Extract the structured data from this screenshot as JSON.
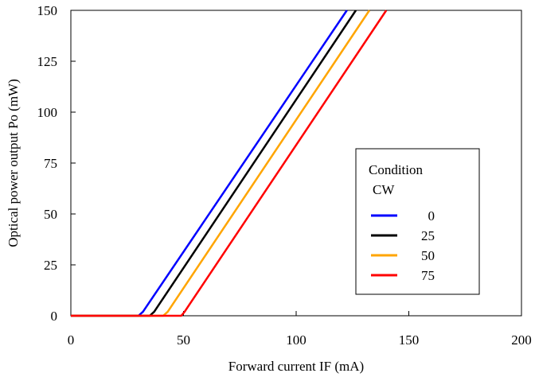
{
  "chart_data": {
    "type": "line",
    "title": "",
    "xlabel": "Forward current IF (mA)",
    "ylabel": "Optical power output Po (mW)",
    "xlim": [
      0,
      200
    ],
    "ylim": [
      0,
      150
    ],
    "xticks": [
      "0",
      "50",
      "100",
      "150",
      "200"
    ],
    "yticks": [
      "0",
      "25",
      "50",
      "75",
      "100",
      "125",
      "150"
    ],
    "grid": false,
    "legend": {
      "title_line1": "Condition",
      "title_line2": "CW",
      "placement": "right"
    },
    "series": [
      {
        "name": "0",
        "color": "#0000ff",
        "x": [
          0,
          30,
          32,
          122.5
        ],
        "y": [
          0,
          0,
          2,
          150
        ]
      },
      {
        "name": "25",
        "color": "#000000",
        "x": [
          0,
          35,
          37,
          126.5
        ],
        "y": [
          0,
          0,
          2,
          150
        ]
      },
      {
        "name": "50",
        "color": "#ffa500",
        "x": [
          0,
          41,
          43,
          132.5
        ],
        "y": [
          0,
          0,
          2,
          150
        ]
      },
      {
        "name": "75",
        "color": "#ff0000",
        "x": [
          0,
          49,
          50.5,
          140
        ],
        "y": [
          0,
          0,
          2,
          150
        ]
      }
    ]
  }
}
